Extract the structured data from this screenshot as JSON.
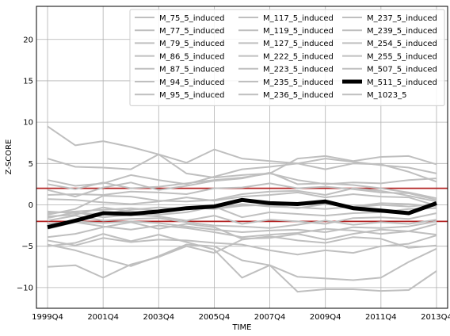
{
  "chart_data": {
    "type": "line",
    "xlabel": "TIME",
    "ylabel": "Z-SCORE",
    "x": [
      0,
      1,
      2,
      3,
      4,
      5,
      6,
      7,
      8,
      9,
      10,
      11,
      12,
      13,
      14
    ],
    "x_tick_positions": [
      0,
      2,
      4,
      6,
      8,
      10,
      12,
      14
    ],
    "x_tick_labels": [
      "1999Q4",
      "2001Q4",
      "2003Q4",
      "2005Q4",
      "2007Q4",
      "2009Q4",
      "2011Q4",
      "2013Q4"
    ],
    "xlim": [
      -0.4,
      14.4
    ],
    "ylim": [
      -12.5,
      24
    ],
    "y_ticks": [
      -10,
      -5,
      0,
      5,
      10,
      15,
      20
    ],
    "y_tick_labels": [
      "−10",
      "−5",
      "0",
      "5",
      "10",
      "15",
      "20"
    ],
    "grid": true,
    "legend_position": "top-right",
    "legend_columns": 3,
    "colors": {
      "background_series": "#bfbfbf",
      "highlight": "#000000",
      "threshold": "#b22222"
    },
    "thresholds": [
      2,
      -2
    ],
    "highlight_series": "M_511_5_induced",
    "series": [
      {
        "name": "M_75_5_induced",
        "values": [
          9.5,
          7.2,
          7.7,
          7.0,
          6.1,
          5.1,
          6.7,
          5.6,
          5.3,
          5.0,
          5.6,
          5.2,
          4.8,
          4.5,
          3.8
        ]
      },
      {
        "name": "M_77_5_induced",
        "values": [
          5.6,
          4.6,
          4.5,
          4.3,
          6.1,
          3.8,
          3.3,
          3.6,
          3.8,
          5.6,
          5.9,
          5.3,
          5.8,
          5.9,
          4.9
        ]
      },
      {
        "name": "M_79_5_induced",
        "values": [
          3.0,
          2.3,
          2.6,
          3.6,
          3.0,
          2.5,
          3.4,
          4.3,
          4.6,
          5.0,
          4.3,
          5.0,
          4.9,
          4.0,
          2.8
        ]
      },
      {
        "name": "M_86_5_induced",
        "values": [
          2.5,
          1.9,
          2.7,
          2.0,
          2.2,
          2.6,
          3.0,
          3.3,
          3.8,
          3.0,
          2.5,
          2.7,
          2.6,
          3.0,
          3.2
        ]
      },
      {
        "name": "M_87_5_induced",
        "values": [
          1.8,
          1.0,
          2.1,
          2.7,
          1.8,
          2.3,
          2.9,
          3.2,
          3.9,
          2.5,
          2.6,
          2.4,
          2.0,
          1.5,
          0.8
        ]
      },
      {
        "name": "M_94_5_induced",
        "values": [
          1.2,
          1.3,
          1.2,
          1.6,
          1.5,
          1.3,
          2.0,
          2.1,
          2.6,
          2.0,
          2.2,
          1.9,
          1.5,
          1.4,
          0.6
        ]
      },
      {
        "name": "M_95_5_induced",
        "values": [
          -1.2,
          -0.5,
          1.1,
          1.0,
          0.5,
          0.4,
          0.6,
          1.3,
          1.6,
          1.7,
          1.2,
          2.0,
          1.7,
          1.1,
          0.4
        ]
      },
      {
        "name": "M_117_5_induced",
        "values": [
          0.7,
          0.6,
          0.3,
          0.1,
          0.4,
          0.9,
          0.5,
          1.0,
          1.2,
          1.5,
          0.9,
          1.3,
          1.0,
          0.9,
          -0.1
        ]
      },
      {
        "name": "M_119_5_induced",
        "values": [
          -0.8,
          -1.0,
          -1.1,
          -0.6,
          -0.3,
          -0.5,
          -0.4,
          0.1,
          -0.2,
          -0.3,
          -0.5,
          -0.2,
          0.2,
          0.1,
          -0.2
        ]
      },
      {
        "name": "M_127_5_induced",
        "values": [
          -1.4,
          -1.2,
          -0.3,
          -0.8,
          -1.2,
          -0.9,
          -0.2,
          -1.5,
          -0.9,
          -1.1,
          -1.3,
          -1.0,
          -0.9,
          -0.5,
          -0.4
        ]
      },
      {
        "name": "M_222_5_induced",
        "values": [
          -1.6,
          -0.9,
          -1.5,
          -1.2,
          -1.4,
          -1.9,
          -1.3,
          -2.3,
          -1.8,
          -2.0,
          -2.3,
          -1.6,
          -1.5,
          -1.7,
          -1.0
        ]
      },
      {
        "name": "M_223_5_induced",
        "values": [
          -1.9,
          -1.3,
          -1.9,
          -1.7,
          -1.6,
          -2.1,
          -2.5,
          -2.6,
          -2.8,
          -2.4,
          -1.9,
          -2.4,
          -2.1,
          -2.3,
          -1.8
        ]
      },
      {
        "name": "M_235_5_induced",
        "values": [
          -2.3,
          -2.0,
          -2.2,
          -2.0,
          -2.2,
          -2.6,
          -3.0,
          -3.3,
          -3.1,
          -3.0,
          -3.3,
          -2.7,
          -2.8,
          -2.6,
          -2.0
        ]
      },
      {
        "name": "M_236_5_induced",
        "values": [
          -2.9,
          -2.1,
          -2.6,
          -3.0,
          -2.5,
          -2.8,
          -3.3,
          -3.9,
          -3.6,
          -3.4,
          -2.9,
          -3.1,
          -3.5,
          -3.2,
          -2.3
        ]
      },
      {
        "name": "M_237_5_induced",
        "values": [
          -3.9,
          -3.5,
          -2.7,
          -2.1,
          -2.9,
          -2.3,
          -2.7,
          -4.1,
          -4.0,
          -3.5,
          -4.2,
          -3.5,
          -3.0,
          -3.2,
          -3.6
        ]
      },
      {
        "name": "M_239_5_induced",
        "values": [
          -4.3,
          -4.9,
          -4.0,
          -4.5,
          -4.2,
          -4.3,
          -4.6,
          -4.8,
          -5.5,
          -6.0,
          -5.5,
          -5.8,
          -5.0,
          -4.7,
          -3.7
        ]
      },
      {
        "name": "M_254_5_induced",
        "values": [
          -4.8,
          -5.5,
          -6.5,
          -7.4,
          -6.2,
          -4.8,
          -5.0,
          -6.7,
          -7.3,
          -8.7,
          -8.9,
          -9.1,
          -8.8,
          -6.9,
          -5.3
        ]
      },
      {
        "name": "M_255_5_induced",
        "values": [
          -5.0,
          -4.6,
          -3.5,
          -4.4,
          -3.6,
          -4.5,
          -5.4,
          -8.8,
          -7.3,
          -10.5,
          -10.2,
          -10.2,
          -10.4,
          -10.3,
          -8.0
        ]
      },
      {
        "name": "M_507_5_induced",
        "values": [
          -7.5,
          -7.3,
          -8.8,
          -7.2,
          -6.3,
          -5.0,
          -5.8,
          -4.2,
          -3.8,
          -4.3,
          -4.6,
          -3.9,
          -4.1,
          -5.2,
          -4.9
        ]
      },
      {
        "name": "M_511_5_induced",
        "values": [
          -2.7,
          -1.9,
          -1.0,
          -1.1,
          -0.8,
          -0.4,
          -0.2,
          0.6,
          0.2,
          0.1,
          0.4,
          -0.4,
          -0.7,
          -1.0,
          0.2
        ]
      },
      {
        "name": "M_1023_5",
        "values": [
          -1.0,
          -0.8,
          -0.6,
          -0.4,
          -0.7,
          -0.3,
          -0.5,
          -0.1,
          0.0,
          -0.4,
          0.1,
          -0.3,
          0.0,
          -0.2,
          0.1
        ]
      }
    ]
  }
}
